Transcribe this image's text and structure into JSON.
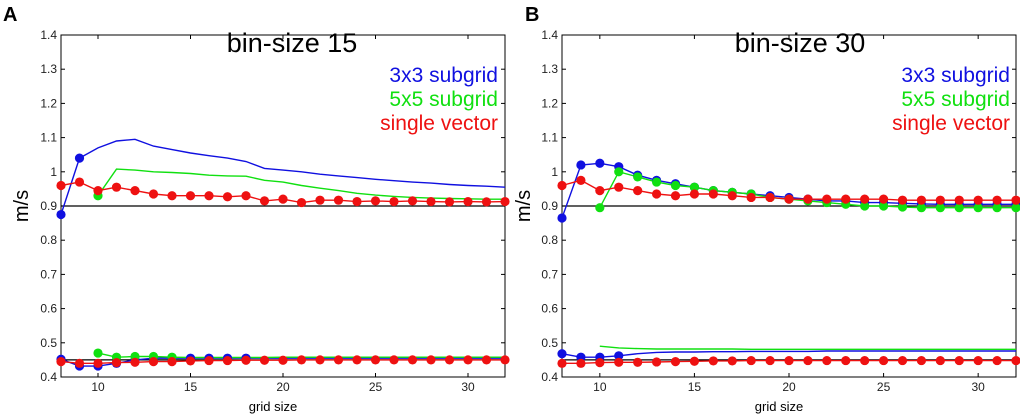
{
  "panels": [
    "A",
    "B"
  ],
  "chart_data": [
    {
      "type": "line",
      "panel": "A",
      "title": "bin-size 15",
      "xlabel": "grid size",
      "ylabel": "m/s",
      "xlim": [
        8,
        32
      ],
      "ylim": [
        0.4,
        1.4
      ],
      "xticks": [
        10,
        15,
        20,
        25,
        30
      ],
      "yticks": [
        0.4,
        0.5,
        0.6,
        0.7,
        0.8,
        0.9,
        1,
        1.1,
        1.2,
        1.3,
        1.4
      ],
      "ytick_labels": [
        "0.4",
        "0.5",
        "0.6",
        "0.7",
        "0.8",
        "0.9",
        "1",
        "1.1",
        "1.2",
        "1.3",
        "1.4"
      ],
      "reference_lines": [
        0.9,
        0.45
      ],
      "legend_position": "top-right",
      "series": [
        {
          "name": "3x3 subgrid",
          "color": "#1010e0",
          "group": "upper",
          "markers_until": 9,
          "x": [
            8,
            9,
            10,
            11,
            12,
            13,
            14,
            15,
            16,
            17,
            18,
            19,
            20,
            21,
            22,
            23,
            24,
            25,
            26,
            27,
            28,
            29,
            30,
            31,
            32
          ],
          "y": [
            0.875,
            1.04,
            1.07,
            1.09,
            1.095,
            1.075,
            1.065,
            1.055,
            1.047,
            1.04,
            1.03,
            1.01,
            1.005,
            1.0,
            0.993,
            0.988,
            0.983,
            0.978,
            0.974,
            0.97,
            0.967,
            0.963,
            0.96,
            0.958,
            0.955
          ]
        },
        {
          "name": "5x5 subgrid",
          "color": "#10e010",
          "group": "upper",
          "markers_until": 10,
          "x": [
            10,
            11,
            12,
            13,
            14,
            15,
            16,
            17,
            18,
            19,
            20,
            21,
            22,
            23,
            24,
            25,
            26,
            27,
            28,
            29,
            30,
            31,
            32
          ],
          "y": [
            0.93,
            1.008,
            1.005,
            1.0,
            0.998,
            0.995,
            0.99,
            0.988,
            0.987,
            0.975,
            0.97,
            0.96,
            0.952,
            0.945,
            0.937,
            0.932,
            0.928,
            0.925,
            0.923,
            0.922,
            0.921,
            0.92,
            0.92
          ]
        },
        {
          "name": "single vector",
          "color": "#ee1111",
          "group": "upper",
          "markers_until": 32,
          "x": [
            8,
            9,
            10,
            11,
            12,
            13,
            14,
            15,
            16,
            17,
            18,
            19,
            20,
            21,
            22,
            23,
            24,
            25,
            26,
            27,
            28,
            29,
            30,
            31,
            32
          ],
          "y": [
            0.96,
            0.97,
            0.945,
            0.955,
            0.945,
            0.935,
            0.93,
            0.93,
            0.93,
            0.927,
            0.93,
            0.915,
            0.92,
            0.91,
            0.917,
            0.917,
            0.913,
            0.915,
            0.913,
            0.915,
            0.913,
            0.912,
            0.913,
            0.912,
            0.913
          ]
        },
        {
          "name": "3x3 subgrid (lower)",
          "color": "#1010e0",
          "group": "lower",
          "markers_until": 18,
          "x": [
            8,
            9,
            10,
            11,
            12,
            13,
            14,
            15,
            16,
            17,
            18,
            19,
            20,
            21,
            22,
            23,
            24,
            25,
            26,
            27,
            28,
            29,
            30,
            31,
            32
          ],
          "y": [
            0.452,
            0.432,
            0.432,
            0.44,
            0.45,
            0.455,
            0.455,
            0.455,
            0.455,
            0.455,
            0.455,
            0.455,
            0.455,
            0.455,
            0.455,
            0.455,
            0.455,
            0.455,
            0.455,
            0.455,
            0.455,
            0.455,
            0.455,
            0.455,
            0.455
          ]
        },
        {
          "name": "5x5 subgrid (lower)",
          "color": "#10e010",
          "group": "lower",
          "markers_until": 14,
          "x": [
            10,
            11,
            12,
            13,
            14,
            15,
            16,
            17,
            18,
            19,
            20,
            21,
            22,
            23,
            24,
            25,
            26,
            27,
            28,
            29,
            30,
            31,
            32
          ],
          "y": [
            0.47,
            0.458,
            0.46,
            0.46,
            0.458,
            0.457,
            0.457,
            0.457,
            0.457,
            0.457,
            0.458,
            0.458,
            0.458,
            0.458,
            0.458,
            0.458,
            0.458,
            0.458,
            0.458,
            0.458,
            0.458,
            0.458,
            0.458
          ]
        },
        {
          "name": "single vector (lower)",
          "color": "#ee1111",
          "group": "lower",
          "markers_until": 32,
          "x": [
            8,
            9,
            10,
            11,
            12,
            13,
            14,
            15,
            16,
            17,
            18,
            19,
            20,
            21,
            22,
            23,
            24,
            25,
            26,
            27,
            28,
            29,
            30,
            31,
            32
          ],
          "y": [
            0.445,
            0.44,
            0.44,
            0.442,
            0.443,
            0.445,
            0.445,
            0.447,
            0.448,
            0.448,
            0.449,
            0.449,
            0.449,
            0.45,
            0.45,
            0.45,
            0.45,
            0.45,
            0.45,
            0.45,
            0.45,
            0.45,
            0.45,
            0.45,
            0.45
          ]
        }
      ],
      "legend": [
        {
          "label": "3x3 subgrid",
          "color": "#1010e0"
        },
        {
          "label": "5x5 subgrid",
          "color": "#10e010"
        },
        {
          "label": "single vector",
          "color": "#ee1111"
        }
      ]
    },
    {
      "type": "line",
      "panel": "B",
      "title": "bin-size 30",
      "xlabel": "grid size",
      "ylabel": "m/s",
      "xlim": [
        8,
        32
      ],
      "ylim": [
        0.4,
        1.4
      ],
      "xticks": [
        10,
        15,
        20,
        25,
        30
      ],
      "yticks": [
        0.4,
        0.5,
        0.6,
        0.7,
        0.8,
        0.9,
        1,
        1.1,
        1.2,
        1.3,
        1.4
      ],
      "ytick_labels": [
        "0.4",
        "0.5",
        "0.6",
        "0.7",
        "0.8",
        "0.9",
        "1",
        "1.1",
        "1.2",
        "1.3",
        "1.4"
      ],
      "reference_lines": [
        0.9,
        0.45
      ],
      "legend_position": "top-right",
      "series": [
        {
          "name": "3x3 subgrid",
          "color": "#1010e0",
          "group": "upper",
          "markers_until": 32,
          "x": [
            8,
            9,
            10,
            11,
            12,
            13,
            14,
            15,
            16,
            17,
            18,
            19,
            20,
            21,
            22,
            23,
            24,
            25,
            26,
            27,
            28,
            29,
            30,
            31,
            32
          ],
          "y": [
            0.865,
            1.02,
            1.025,
            1.015,
            0.99,
            0.975,
            0.965,
            0.955,
            0.945,
            0.94,
            0.935,
            0.93,
            0.925,
            0.92,
            0.915,
            0.915,
            0.91,
            0.91,
            0.908,
            0.906,
            0.905,
            0.905,
            0.905,
            0.905,
            0.905
          ]
        },
        {
          "name": "5x5 subgrid",
          "color": "#10e010",
          "group": "upper",
          "markers_until": 32,
          "x": [
            10,
            11,
            12,
            13,
            14,
            15,
            16,
            17,
            18,
            19,
            20,
            21,
            22,
            23,
            24,
            25,
            26,
            27,
            28,
            29,
            30,
            31,
            32
          ],
          "y": [
            0.895,
            1.0,
            0.985,
            0.97,
            0.96,
            0.955,
            0.945,
            0.94,
            0.935,
            0.925,
            0.92,
            0.915,
            0.91,
            0.905,
            0.9,
            0.9,
            0.897,
            0.895,
            0.895,
            0.895,
            0.895,
            0.895,
            0.895
          ]
        },
        {
          "name": "single vector",
          "color": "#ee1111",
          "group": "upper",
          "markers_until": 32,
          "x": [
            8,
            9,
            10,
            11,
            12,
            13,
            14,
            15,
            16,
            17,
            18,
            19,
            20,
            21,
            22,
            23,
            24,
            25,
            26,
            27,
            28,
            29,
            30,
            31,
            32
          ],
          "y": [
            0.96,
            0.975,
            0.945,
            0.955,
            0.945,
            0.935,
            0.93,
            0.935,
            0.935,
            0.93,
            0.925,
            0.925,
            0.92,
            0.92,
            0.92,
            0.92,
            0.92,
            0.92,
            0.917,
            0.917,
            0.917,
            0.917,
            0.917,
            0.917,
            0.917
          ]
        },
        {
          "name": "3x3 subgrid (lower)",
          "color": "#1010e0",
          "group": "lower",
          "markers_until": 11,
          "x": [
            8,
            9,
            10,
            11,
            12,
            13,
            14,
            15,
            16,
            17,
            18,
            19,
            20,
            21,
            22,
            23,
            24,
            25,
            26,
            27,
            28,
            29,
            30,
            31,
            32
          ],
          "y": [
            0.468,
            0.458,
            0.458,
            0.462,
            0.468,
            0.472,
            0.473,
            0.473,
            0.474,
            0.474,
            0.475,
            0.475,
            0.475,
            0.475,
            0.476,
            0.476,
            0.476,
            0.476,
            0.476,
            0.476,
            0.476,
            0.476,
            0.476,
            0.476,
            0.476
          ]
        },
        {
          "name": "5x5 subgrid (lower)",
          "color": "#10e010",
          "group": "lower",
          "markers_until": 9,
          "x": [
            10,
            11,
            12,
            13,
            14,
            15,
            16,
            17,
            18,
            19,
            20,
            21,
            22,
            23,
            24,
            25,
            26,
            27,
            28,
            29,
            30,
            31,
            32
          ],
          "y": [
            0.49,
            0.485,
            0.483,
            0.482,
            0.482,
            0.482,
            0.482,
            0.482,
            0.481,
            0.481,
            0.481,
            0.481,
            0.481,
            0.481,
            0.481,
            0.481,
            0.481,
            0.481,
            0.481,
            0.481,
            0.481,
            0.481,
            0.481
          ]
        },
        {
          "name": "single vector (lower)",
          "color": "#ee1111",
          "group": "lower",
          "markers_until": 32,
          "x": [
            8,
            9,
            10,
            11,
            12,
            13,
            14,
            15,
            16,
            17,
            18,
            19,
            20,
            21,
            22,
            23,
            24,
            25,
            26,
            27,
            28,
            29,
            30,
            31,
            32
          ],
          "y": [
            0.44,
            0.44,
            0.442,
            0.443,
            0.443,
            0.444,
            0.445,
            0.446,
            0.447,
            0.447,
            0.448,
            0.448,
            0.448,
            0.448,
            0.448,
            0.448,
            0.448,
            0.448,
            0.448,
            0.448,
            0.448,
            0.448,
            0.448,
            0.448,
            0.448
          ]
        }
      ],
      "legend": [
        {
          "label": "3x3 subgrid",
          "color": "#1010e0"
        },
        {
          "label": "5x5 subgrid",
          "color": "#10e010"
        },
        {
          "label": "single vector",
          "color": "#ee1111"
        }
      ]
    }
  ]
}
